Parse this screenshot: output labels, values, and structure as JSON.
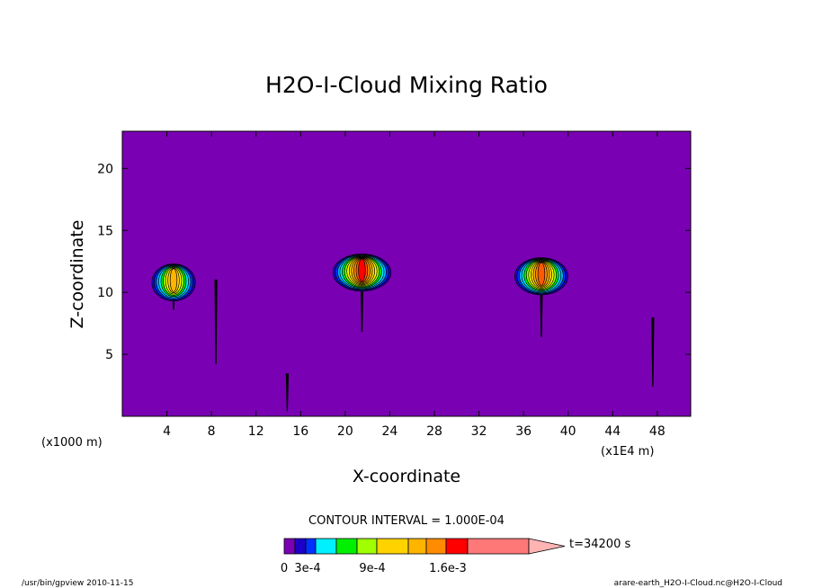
{
  "chart_data": {
    "type": "heatmap",
    "title": "H2O-I-Cloud Mixing Ratio",
    "xlabel": "X-coordinate",
    "ylabel": "Z-coordinate",
    "x_unit_left": "(x1000 m)",
    "x_unit_right": "(x1E4 m)",
    "xlim": [
      0,
      51
    ],
    "ylim": [
      0,
      23
    ],
    "x_ticks": [
      4,
      8,
      12,
      16,
      20,
      24,
      28,
      32,
      36,
      40,
      44,
      48
    ],
    "y_ticks": [
      5,
      10,
      15,
      20
    ],
    "contour_interval_label": "CONTOUR INTERVAL = 1.000E-04",
    "time_label": "t=34200 s",
    "colorbar_levels": [
      0,
      0.0001,
      0.0002,
      0.0003,
      0.0004,
      0.0005,
      0.0006,
      0.0007,
      0.0008,
      0.0009,
      0.001,
      0.0012,
      0.0014,
      0.0016,
      0.002
    ],
    "colorbar_colors": [
      "#7a00b4",
      "#1c00c8",
      "#0032ff",
      "#00b4ff",
      "#00f0ff",
      "#00f000",
      "#a0ff00",
      "#ffff00",
      "#ffd200",
      "#ffb400",
      "#ff8c00",
      "#ff5a00",
      "#ff0000",
      "#ff7878",
      "#ffb4b4"
    ],
    "colorbar_labels": [
      {
        "value": 0,
        "text": "0"
      },
      {
        "value": 0.0003,
        "text": "3e-4"
      },
      {
        "value": 0.0009,
        "text": "9e-4"
      },
      {
        "value": 0.0016,
        "text": "1.6e-3"
      }
    ],
    "background_color": "#7a00b4",
    "clouds": [
      {
        "x": 4.6,
        "z": 10.8,
        "base_z": 8.6,
        "peak": 0.0009
      },
      {
        "x": 8.4,
        "z": 8.0,
        "base_z": 4.2,
        "peak": 0.0002
      },
      {
        "x": 14.8,
        "z": 2.1,
        "base_z": 0.4,
        "peak": 0.0001
      },
      {
        "x": 21.5,
        "z": 11.6,
        "base_z": 6.8,
        "peak": 0.0012
      },
      {
        "x": 37.6,
        "z": 11.3,
        "base_z": 6.4,
        "peak": 0.0011
      },
      {
        "x": 47.6,
        "z": 5.5,
        "base_z": 2.4,
        "peak": 0.0002
      }
    ]
  },
  "footer": {
    "left_text": "/usr/bin/gpview  2010-11-15",
    "right_text": "arare-earth_H2O-I-Cloud.nc@H2O-I-Cloud"
  }
}
